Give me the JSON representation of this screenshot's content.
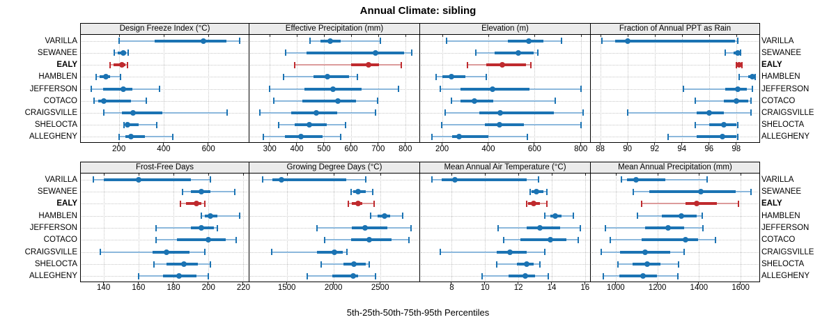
{
  "title": "Annual Climate: sibling",
  "caption": "5th-25th-50th-75th-95th Percentiles",
  "rows": [
    "VARILLA",
    "SEWANEE",
    "EALY",
    "HAMBLEN",
    "JEFFERSON",
    "COTACO",
    "CRAIGSVILLE",
    "SHELOCTA",
    "ALLEGHENY"
  ],
  "highlight_row": "EALY",
  "colors": {
    "series": "#1B73B3",
    "series_light": "#8CB8DC",
    "highlight": "#BF2A2E",
    "highlight_light": "#DC9B9B",
    "strip_bg": "#EBEBEB",
    "grid": "#C6C6C6",
    "panel_border": "#000000"
  },
  "chart_data": {
    "type": "dotplot-intervals",
    "percentiles": [
      5,
      25,
      50,
      75,
      95
    ],
    "row_order": [
      "VARILLA",
      "SEWANEE",
      "EALY",
      "HAMBLEN",
      "JEFFERSON",
      "COTACO",
      "CRAIGSVILLE",
      "SHELOCTA",
      "ALLEGHENY"
    ],
    "panels": [
      {
        "title": "Design Freeze Index (°C)",
        "grid_row": 0,
        "xlim": [
          30,
          780
        ],
        "ticks": [
          200,
          400,
          600
        ],
        "values": [
          [
            200,
            360,
            577,
            680,
            740
          ],
          [
            180,
            195,
            220,
            231,
            242
          ],
          [
            162,
            177,
            213,
            229,
            239
          ],
          [
            99,
            115,
            141,
            162,
            208
          ],
          [
            76,
            130,
            221,
            260,
            383
          ],
          [
            88,
            108,
            134,
            255,
            322
          ],
          [
            134,
            213,
            262,
            394,
            683
          ],
          [
            224,
            228,
            237,
            289,
            368
          ],
          [
            201,
            229,
            255,
            316,
            440
          ]
        ]
      },
      {
        "title": "Effective Precipitation (mm)",
        "grid_row": 0,
        "xlim": [
          225,
          852
        ],
        "ticks": [
          300,
          400,
          500,
          600,
          700,
          800
        ],
        "values": [
          [
            448,
            488,
            522,
            561,
            707
          ],
          [
            358,
            436,
            690,
            795,
            825
          ],
          [
            391,
            600,
            664,
            704,
            785
          ],
          [
            351,
            462,
            514,
            592,
            624
          ],
          [
            300,
            429,
            533,
            638,
            775
          ],
          [
            315,
            421,
            551,
            618,
            699
          ],
          [
            263,
            378,
            471,
            548,
            691
          ],
          [
            332,
            393,
            445,
            510,
            579
          ],
          [
            277,
            355,
            414,
            494,
            561
          ]
        ]
      },
      {
        "title": "Elevation (m)",
        "grid_row": 0,
        "xlim": [
          105,
          840
        ],
        "ticks": [
          200,
          400,
          600,
          800
        ],
        "values": [
          [
            220,
            485,
            576,
            638,
            716
          ],
          [
            346,
            427,
            529,
            595,
            615
          ],
          [
            309,
            391,
            459,
            563,
            583
          ],
          [
            173,
            200,
            242,
            301,
            391
          ],
          [
            193,
            281,
            417,
            578,
            802
          ],
          [
            240,
            281,
            339,
            422,
            689
          ],
          [
            212,
            361,
            452,
            684,
            810
          ],
          [
            198,
            386,
            447,
            553,
            800
          ],
          [
            155,
            245,
            275,
            400,
            568
          ]
        ]
      },
      {
        "title": "Fraction of Annual PPT as Rain",
        "grid_row": 0,
        "xlim": [
          87.3,
          99.7
        ],
        "ticks": [
          88,
          90,
          92,
          94,
          96,
          98
        ],
        "values": [
          [
            88.1,
            89.1,
            90.0,
            97.9,
            98.1
          ],
          [
            97.2,
            97.8,
            98.1,
            98.2,
            98.3
          ],
          [
            98.0,
            98.1,
            98.2,
            98.3,
            98.4
          ],
          [
            98.2,
            98.9,
            99.2,
            99.3,
            99.4
          ],
          [
            94.1,
            97.2,
            98.1,
            98.8,
            99.2
          ],
          [
            95.0,
            97.1,
            98.0,
            98.9,
            99.1
          ],
          [
            90.0,
            95.1,
            96.0,
            97.1,
            99.1
          ],
          [
            95.0,
            96.0,
            97.1,
            98.0,
            98.1
          ],
          [
            93.0,
            95.1,
            97.0,
            98.0,
            98.1
          ]
        ]
      },
      {
        "title": "Frost-Free Days",
        "grid_row": 1,
        "xlim": [
          127,
          223
        ],
        "ticks": [
          140,
          160,
          180,
          200,
          220
        ],
        "values": [
          [
            134,
            140,
            160,
            190,
            201
          ],
          [
            185,
            190,
            196,
            201,
            215
          ],
          [
            184,
            187,
            193,
            196,
            198
          ],
          [
            196,
            198,
            201,
            205,
            218
          ],
          [
            170,
            190,
            196,
            203,
            205
          ],
          [
            170,
            182,
            200,
            210,
            216
          ],
          [
            138,
            168,
            176,
            189,
            198
          ],
          [
            169,
            176,
            186,
            194,
            201
          ],
          [
            160,
            174,
            183,
            193,
            200
          ]
        ]
      },
      {
        "title": "Growing Degree Days (°C)",
        "grid_row": 1,
        "xlim": [
          1100,
          2920
        ],
        "ticks": [
          1500,
          2000,
          2500
        ],
        "values": [
          [
            1240,
            1345,
            1445,
            2135,
            2345
          ],
          [
            2190,
            2210,
            2267,
            2346,
            2420
          ],
          [
            2156,
            2193,
            2267,
            2309,
            2433
          ],
          [
            2400,
            2470,
            2545,
            2605,
            2740
          ],
          [
            1825,
            2200,
            2340,
            2580,
            2830
          ],
          [
            1905,
            2190,
            2385,
            2620,
            2805
          ],
          [
            1340,
            1820,
            2010,
            2100,
            2145
          ],
          [
            1870,
            2105,
            2220,
            2343,
            2380
          ],
          [
            1720,
            1990,
            2215,
            2260,
            2450
          ]
        ]
      },
      {
        "title": "Mean Annual Air Temperature (°C)",
        "grid_row": 1,
        "xlim": [
          6.1,
          16.3
        ],
        "ticks": [
          8,
          10,
          12,
          14,
          16
        ],
        "values": [
          [
            6.8,
            7.4,
            8.2,
            12.5,
            13.2
          ],
          [
            12.7,
            12.8,
            13.1,
            13.5,
            13.7
          ],
          [
            12.5,
            12.6,
            12.9,
            13.3,
            13.7
          ],
          [
            13.6,
            13.9,
            14.2,
            14.6,
            15.3
          ],
          [
            10.8,
            12.5,
            13.3,
            14.5,
            15.7
          ],
          [
            11.1,
            12.1,
            13.9,
            14.9,
            15.6
          ],
          [
            7.3,
            10.7,
            11.5,
            12.5,
            13.6
          ],
          [
            10.7,
            11.9,
            12.5,
            12.9,
            13.3
          ],
          [
            9.8,
            11.4,
            12.4,
            13.0,
            13.8
          ]
        ]
      },
      {
        "title": "Mean Annual Precipitation (mm)",
        "grid_row": 1,
        "xlim": [
          880,
          1690
        ],
        "ticks": [
          1000,
          1200,
          1400,
          1600
        ],
        "values": [
          [
            1026,
            1054,
            1096,
            1238,
            1439
          ],
          [
            1085,
            1160,
            1410,
            1575,
            1650
          ],
          [
            1125,
            1335,
            1390,
            1485,
            1590
          ],
          [
            1105,
            1220,
            1315,
            1390,
            1415
          ],
          [
            950,
            1140,
            1250,
            1330,
            1420
          ],
          [
            975,
            1125,
            1335,
            1395,
            1480
          ],
          [
            930,
            1020,
            1140,
            1260,
            1330
          ],
          [
            1010,
            1082,
            1150,
            1216,
            1303
          ],
          [
            939,
            1018,
            1132,
            1199,
            1300
          ]
        ]
      }
    ]
  }
}
